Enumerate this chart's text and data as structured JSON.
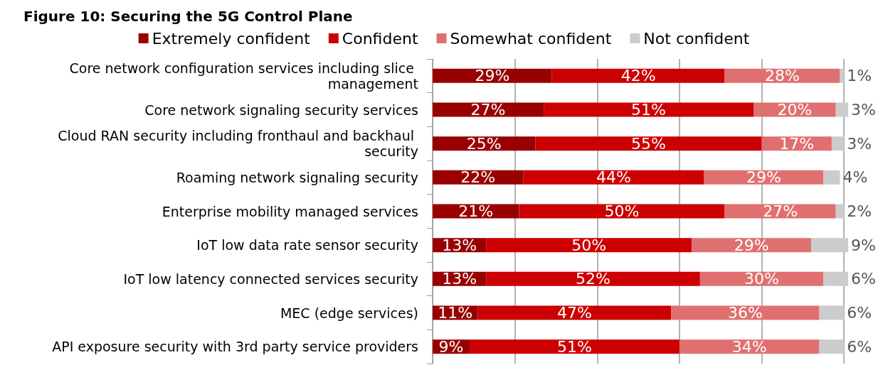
{
  "chart_data": {
    "type": "bar",
    "orientation": "horizontal",
    "stacked": true,
    "title": "Figure 10: Securing the 5G Control Plane",
    "categories": [
      "Core network configuration services including slice management",
      "Core network signaling security services",
      "Cloud RAN security including fronthaul and backhaul security",
      "Roaming network signaling security",
      "Enterprise mobility managed services",
      "IoT low data rate sensor security",
      "IoT low latency connected services security",
      "MEC (edge services)",
      "API exposure security with 3rd party service providers"
    ],
    "series": [
      {
        "name": "Extremely confident",
        "color": "#990000",
        "values": [
          29,
          27,
          25,
          22,
          21,
          13,
          13,
          11,
          9
        ],
        "value_labels": [
          "29%",
          "27%",
          "25%",
          "22%",
          "21%",
          "13%",
          "13%",
          "11%",
          "9%"
        ]
      },
      {
        "name": "Confident",
        "color": "#cc0000",
        "values": [
          42,
          51,
          55,
          44,
          50,
          50,
          52,
          47,
          51
        ],
        "value_labels": [
          "42%",
          "51%",
          "55%",
          "44%",
          "50%",
          "50%",
          "52%",
          "47%",
          "51%"
        ]
      },
      {
        "name": "Somewhat confident",
        "color": "#e07070",
        "values": [
          28,
          20,
          17,
          29,
          27,
          29,
          30,
          36,
          34
        ],
        "value_labels": [
          "28%",
          "20%",
          "17%",
          "29%",
          "27%",
          "29%",
          "30%",
          "36%",
          "34%"
        ]
      },
      {
        "name": "Not confident",
        "color": "#cccccc",
        "values": [
          1,
          3,
          3,
          4,
          2,
          9,
          6,
          6,
          6
        ],
        "value_labels": [
          "1%",
          "3%",
          "3%",
          "4%",
          "2%",
          "9%",
          "6%",
          "6%",
          "6%"
        ]
      }
    ],
    "xlim": [
      0,
      101
    ],
    "xticks": [
      {
        "value": 0,
        "label": null
      },
      {
        "value": 20,
        "label": null
      },
      {
        "value": 40,
        "label": null
      },
      {
        "value": 60,
        "label": null
      },
      {
        "value": 80,
        "label": null
      },
      {
        "value": 100,
        "label": null
      }
    ],
    "tick_labels": "y",
    "grid": "x",
    "legend": "top"
  }
}
